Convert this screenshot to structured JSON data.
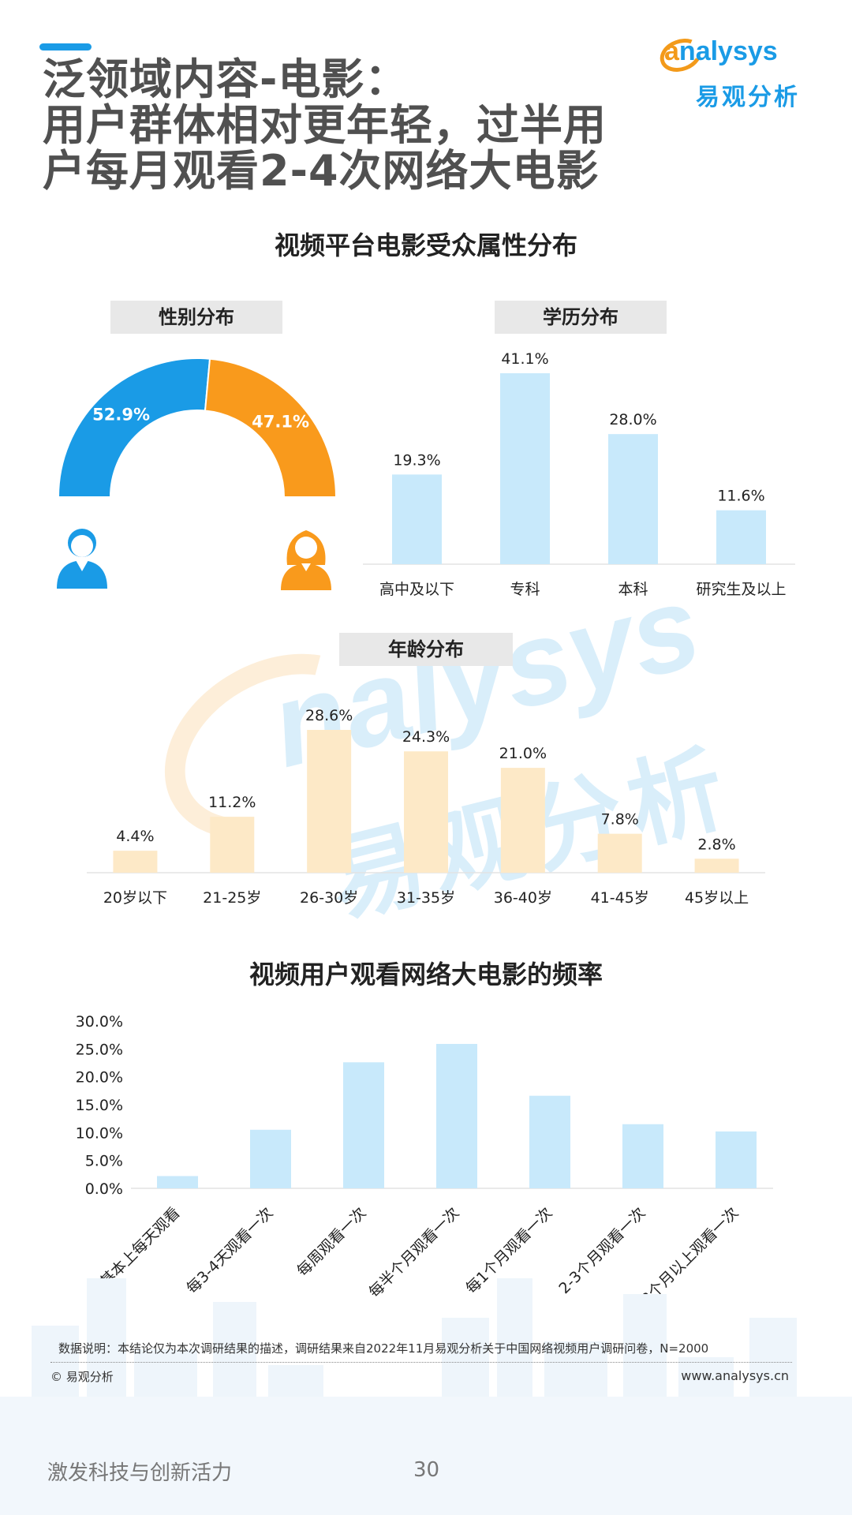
{
  "header": {
    "title_line1": "泛领域内容-电影：",
    "title_line2": "用户群体相对更年轻，过半用",
    "title_line3": "户每月观看2-4次网络大电影",
    "logo_en": "analysys",
    "logo_cn": "易观分析",
    "brand_blue": "#1a9be6",
    "brand_orange": "#f39a1a"
  },
  "section1_title": "视频平台电影受众属性分布",
  "section2_title": "视频用户观看网络大电影的频率",
  "watermark": {
    "en": "nalysys",
    "cn": "易观分析"
  },
  "chart_data": [
    {
      "id": "gender",
      "type": "pie",
      "title": "性别分布",
      "slices": [
        {
          "label": "52.9%",
          "value": 52.9,
          "icon": "male-user-icon",
          "color": "#1a9be6"
        },
        {
          "label": "47.1%",
          "value": 47.1,
          "icon": "female-user-icon",
          "color": "#f99a1c"
        }
      ]
    },
    {
      "id": "education",
      "type": "bar",
      "title": "学历分布",
      "categories": [
        "高中及以下",
        "专科",
        "本科",
        "研究生及以上"
      ],
      "values": [
        19.3,
        41.1,
        28.0,
        11.6
      ],
      "labels": [
        "19.3%",
        "41.1%",
        "28.0%",
        "11.6%"
      ],
      "color": "#c8e9fb"
    },
    {
      "id": "age",
      "type": "bar",
      "title": "年龄分布",
      "categories": [
        "20岁以下",
        "21-25岁",
        "26-30岁",
        "31-35岁",
        "36-40岁",
        "41-45岁",
        "45岁以上"
      ],
      "values": [
        4.4,
        11.2,
        28.6,
        24.3,
        21.0,
        7.8,
        2.8
      ],
      "labels": [
        "4.4%",
        "11.2%",
        "28.6%",
        "24.3%",
        "21.0%",
        "7.8%",
        "2.8%"
      ],
      "color": "#fde9c7"
    },
    {
      "id": "frequency",
      "type": "bar",
      "title": "视频用户观看网络大电影的频率",
      "categories": [
        "基本上每天观看",
        "每3-4天观看一次",
        "每周观看一次",
        "每半个月观看一次",
        "每1个月观看一次",
        "2-3个月观看一次",
        "3个月以上观看一次"
      ],
      "values": [
        2.2,
        10.5,
        22.6,
        25.9,
        16.6,
        11.5,
        10.2
      ],
      "ylim": [
        0,
        30
      ],
      "yticks": [
        "0.0%",
        "5.0%",
        "10.0%",
        "15.0%",
        "20.0%",
        "25.0%",
        "30.0%"
      ],
      "color": "#c8e9fb"
    }
  ],
  "footer": {
    "note": "数据说明：本结论仅为本次调研结果的描述，调研结果来自2022年11月易观分析关于中国网络视频用户调研问卷，N=2000",
    "copyright": "© 易观分析",
    "website": "www.analysys.cn",
    "slogan": "激发科技与创新活力",
    "page": "30"
  }
}
